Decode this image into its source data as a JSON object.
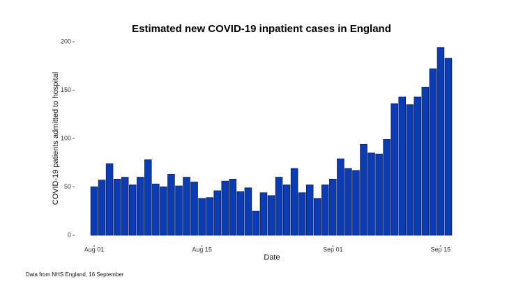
{
  "chart_data": {
    "type": "bar",
    "title": "Estimated new COVID-19 inpatient cases in England",
    "x_label": "Date",
    "y_label": "COVID-19 patients admitted to hospital",
    "caption": "Data from NHS England, 16 September",
    "categories": [
      "Aug 01",
      null,
      null,
      null,
      null,
      null,
      null,
      null,
      null,
      null,
      null,
      null,
      null,
      null,
      "Aug 15",
      null,
      null,
      null,
      null,
      null,
      null,
      null,
      null,
      null,
      null,
      null,
      null,
      null,
      null,
      null,
      null,
      "Sep 01",
      null,
      null,
      null,
      null,
      null,
      null,
      null,
      null,
      null,
      null,
      null,
      null,
      null,
      "Sep 15",
      null
    ],
    "values": [
      50,
      57,
      74,
      58,
      60,
      52,
      60,
      78,
      53,
      50,
      63,
      51,
      60,
      55,
      38,
      39,
      46,
      56,
      58,
      45,
      49,
      25,
      44,
      41,
      60,
      52,
      69,
      44,
      52,
      38,
      52,
      58,
      79,
      69,
      67,
      94,
      85,
      84,
      99,
      136,
      143,
      135,
      143,
      153,
      172,
      194,
      183
    ],
    "color": "#0b3cb4",
    "ylim": [
      0,
      200
    ],
    "yticks": [
      0,
      50,
      100,
      150,
      200
    ],
    "grid": false
  }
}
